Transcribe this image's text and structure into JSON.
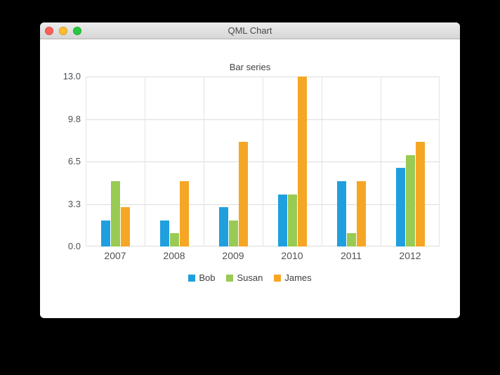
{
  "window": {
    "title": "QML Chart",
    "traffic_lights": [
      {
        "name": "close",
        "color": "#ff5f57"
      },
      {
        "name": "minimize",
        "color": "#febc2e"
      },
      {
        "name": "zoom",
        "color": "#28c840"
      }
    ]
  },
  "chart_data": {
    "type": "bar",
    "title": "Bar series",
    "categories": [
      "2007",
      "2008",
      "2009",
      "2010",
      "2011",
      "2012"
    ],
    "series": [
      {
        "name": "Bob",
        "color": "#209fdf",
        "values": [
          2,
          2,
          3,
          4,
          5,
          6
        ]
      },
      {
        "name": "Susan",
        "color": "#99ca53",
        "values": [
          5,
          1,
          2,
          4,
          1,
          7
        ]
      },
      {
        "name": "James",
        "color": "#f6a625",
        "values": [
          3,
          5,
          8,
          13,
          5,
          8
        ]
      }
    ],
    "y_ticks": [
      "13.0",
      "9.8",
      "6.5",
      "3.3",
      "0.0"
    ],
    "ylim": [
      0,
      13
    ],
    "grid": true,
    "legend_position": "bottom",
    "grid_color": "#dcdcdc",
    "label_color": "#4d5055"
  }
}
